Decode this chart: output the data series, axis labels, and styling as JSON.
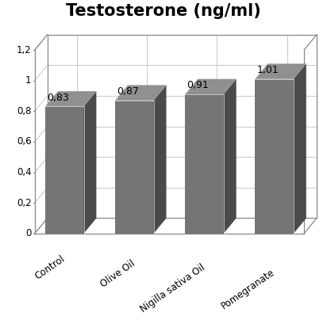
{
  "title": "Testosterone (ng/ml)",
  "categories": [
    "Control",
    "Olive Oil",
    "Nigilla sativa Oil",
    "Pomegranate"
  ],
  "values": [
    0.83,
    0.87,
    0.91,
    1.01
  ],
  "bar_color_front": "#757575",
  "bar_color_side": "#4a4a4a",
  "bar_color_top": "#909090",
  "grid_color": "#c8c8c8",
  "ylim": [
    0,
    1.2
  ],
  "yticks": [
    0,
    0.2,
    0.4,
    0.6,
    0.8,
    1.0,
    1.2
  ],
  "ytick_labels": [
    "0",
    "0,2",
    "0,4",
    "0,6",
    "0,8",
    "1",
    "1,2"
  ],
  "title_fontsize": 15,
  "label_fontsize": 8.5,
  "value_fontsize": 9,
  "background_color": "#ffffff"
}
